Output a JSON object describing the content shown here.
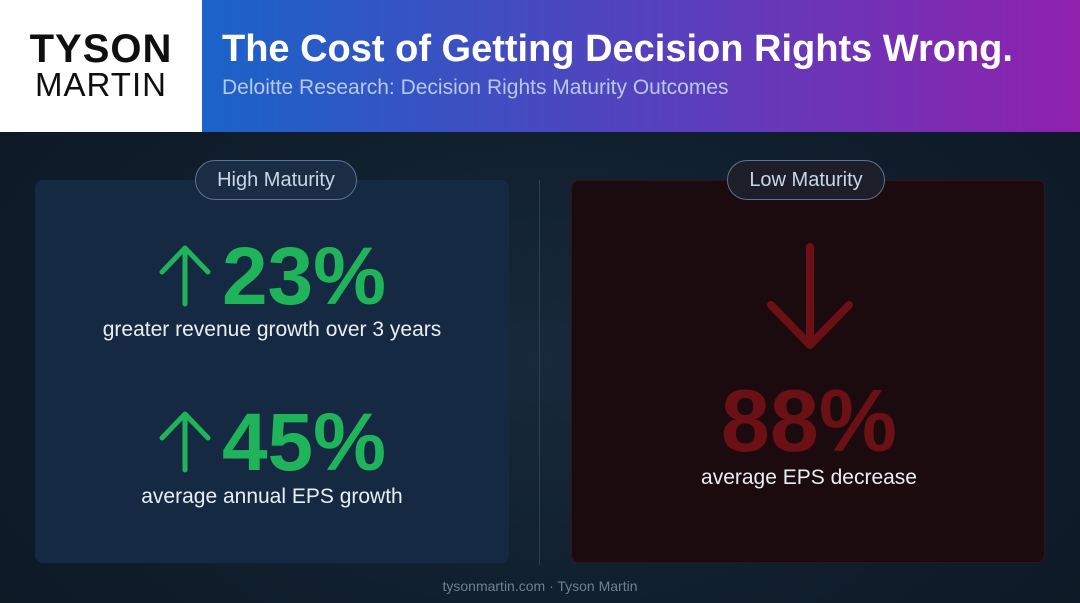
{
  "logo": {
    "line1": "TYSON",
    "line2": "MARTIN"
  },
  "header": {
    "title": "The Cost of Getting Decision Rights Wrong.",
    "subtitle": "Deloitte Research: Decision Rights Maturity Outcomes"
  },
  "high_maturity": {
    "label": "High Maturity",
    "stats": [
      {
        "value": "23%",
        "caption": "greater revenue growth over 3 years",
        "icon": "arrow-up-icon"
      },
      {
        "value": "45%",
        "caption": "average annual EPS growth",
        "icon": "arrow-up-icon"
      }
    ],
    "accent_color": "#1fb45a"
  },
  "low_maturity": {
    "label": "Low Maturity",
    "stat": {
      "value": "88%",
      "caption": "average EPS decrease",
      "icon": "arrow-down-icon"
    },
    "accent_color": "#6b1014"
  },
  "footer": {
    "text": "tysonmartin.com · Tyson Martin"
  }
}
